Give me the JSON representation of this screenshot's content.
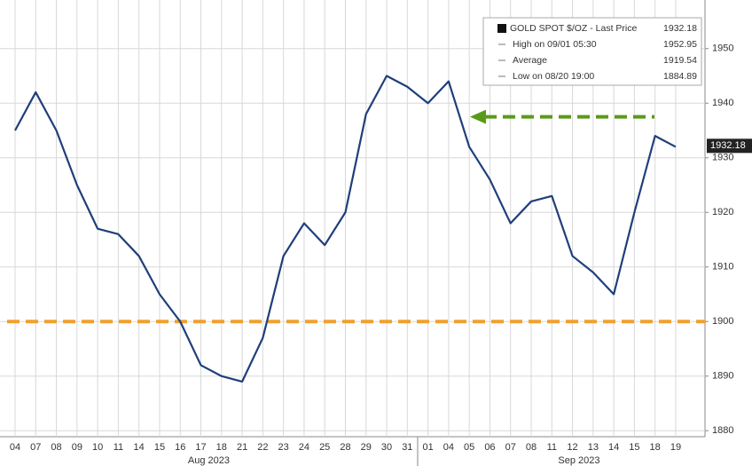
{
  "chart_data": {
    "type": "line",
    "categories": [
      "04",
      "07",
      "08",
      "09",
      "10",
      "11",
      "14",
      "15",
      "16",
      "17",
      "18",
      "21",
      "22",
      "23",
      "24",
      "25",
      "28",
      "29",
      "30",
      "31",
      "01",
      "04",
      "05",
      "06",
      "07",
      "08",
      "11",
      "12",
      "13",
      "14",
      "15",
      "18",
      "19"
    ],
    "month_labels": [
      "Aug 2023",
      "Sep 2023"
    ],
    "series": [
      {
        "name": "GOLD SPOT $/OZ - Last Price",
        "color": "#1f3f7a",
        "values": [
          1935,
          1942,
          1935,
          1925,
          1917,
          1916,
          1912,
          1905,
          1900,
          1892,
          1890,
          1889,
          1897,
          1912,
          1918,
          1914,
          1920,
          1938,
          1945,
          1943,
          1940,
          1944,
          1932,
          1926,
          1918,
          1922,
          1923,
          1912,
          1909,
          1905,
          1920,
          1934,
          1932
        ]
      }
    ],
    "legend": [
      {
        "label": "GOLD SPOT $/OZ - Last Price",
        "value": 1932.18
      },
      {
        "label": "High on 09/01 05:30",
        "value": 1952.95
      },
      {
        "label": "Average",
        "value": 1919.54
      },
      {
        "label": "Low on 08/20 19:00",
        "value": 1884.89
      }
    ],
    "last_price": 1932.18,
    "support_line": {
      "value": 1900,
      "color": "#f0a030"
    },
    "target_arrow": {
      "value": 1937.5,
      "color": "#5a9a1a"
    },
    "ylim": [
      1878.9,
      1958.9
    ],
    "yticks": [
      1880,
      1890,
      1900,
      1910,
      1920,
      1930,
      1940,
      1950
    ],
    "grid": true
  }
}
